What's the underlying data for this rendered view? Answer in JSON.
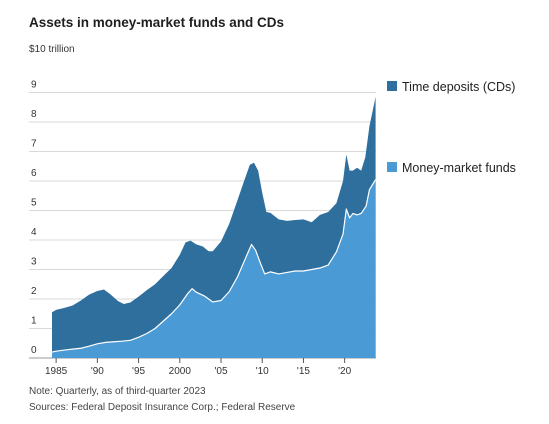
{
  "chart_data": {
    "type": "area",
    "title": "Assets in money-market funds and CDs",
    "unit_label": "$10 trillion",
    "xlabel": "",
    "ylabel": "",
    "xlim": [
      1984.5,
      2023.8
    ],
    "ylim": [
      0,
      10
    ],
    "stacked": true,
    "grid": true,
    "legend_position": "right",
    "y_ticks": [
      0,
      1,
      2,
      3,
      4,
      5,
      6,
      7,
      8,
      9
    ],
    "y_tick_labels": [
      "0",
      "1",
      "2",
      "3",
      "4",
      "5",
      "6",
      "7",
      "8",
      "9"
    ],
    "x_ticks": [
      1985,
      1990,
      1995,
      2000,
      2005,
      2010,
      2015,
      2020
    ],
    "x_tick_labels": [
      "1985",
      "'90",
      "'95",
      "2000",
      "'05",
      "'10",
      "'15",
      "'20"
    ],
    "series": [
      {
        "name": "Time deposits (CDs)",
        "color": "#2f6f9e",
        "stack_order": 2,
        "total_points": [
          [
            1984.5,
            1.55
          ],
          [
            1985,
            1.63
          ],
          [
            1986,
            1.7
          ],
          [
            1987,
            1.78
          ],
          [
            1988,
            1.95
          ],
          [
            1989,
            2.15
          ],
          [
            1990,
            2.27
          ],
          [
            1990.8,
            2.32
          ],
          [
            1991.5,
            2.18
          ],
          [
            1992.5,
            1.93
          ],
          [
            1993.2,
            1.83
          ],
          [
            1994,
            1.88
          ],
          [
            1995,
            2.08
          ],
          [
            1996,
            2.3
          ],
          [
            1997,
            2.5
          ],
          [
            1998,
            2.78
          ],
          [
            1999,
            3.05
          ],
          [
            2000,
            3.5
          ],
          [
            2000.7,
            3.92
          ],
          [
            2001.3,
            3.98
          ],
          [
            2002,
            3.85
          ],
          [
            2002.8,
            3.78
          ],
          [
            2003.5,
            3.62
          ],
          [
            2004,
            3.62
          ],
          [
            2005,
            3.95
          ],
          [
            2006,
            4.55
          ],
          [
            2007,
            5.35
          ],
          [
            2007.8,
            6.0
          ],
          [
            2008.5,
            6.55
          ],
          [
            2009,
            6.62
          ],
          [
            2009.5,
            6.35
          ],
          [
            2010,
            5.6
          ],
          [
            2010.5,
            4.95
          ],
          [
            2011,
            4.92
          ],
          [
            2012,
            4.7
          ],
          [
            2013,
            4.65
          ],
          [
            2014,
            4.68
          ],
          [
            2015,
            4.7
          ],
          [
            2016,
            4.6
          ],
          [
            2017,
            4.85
          ],
          [
            2018,
            4.95
          ],
          [
            2019,
            5.25
          ],
          [
            2019.8,
            6.0
          ],
          [
            2020.2,
            6.9
          ],
          [
            2020.6,
            6.35
          ],
          [
            2021,
            6.35
          ],
          [
            2021.5,
            6.45
          ],
          [
            2022,
            6.35
          ],
          [
            2022.5,
            6.8
          ],
          [
            2023,
            7.85
          ],
          [
            2023.75,
            8.85
          ]
        ]
      },
      {
        "name": "Money-market funds",
        "color": "#4a9ad6",
        "stack_order": 1,
        "points": [
          [
            1984.5,
            0.2
          ],
          [
            1985,
            0.23
          ],
          [
            1986,
            0.27
          ],
          [
            1987,
            0.3
          ],
          [
            1988,
            0.33
          ],
          [
            1989,
            0.4
          ],
          [
            1990,
            0.48
          ],
          [
            1991,
            0.53
          ],
          [
            1992,
            0.55
          ],
          [
            1993,
            0.57
          ],
          [
            1994,
            0.6
          ],
          [
            1995,
            0.7
          ],
          [
            1996,
            0.83
          ],
          [
            1997,
            1.0
          ],
          [
            1998,
            1.25
          ],
          [
            1999,
            1.5
          ],
          [
            2000,
            1.8
          ],
          [
            2001,
            2.2
          ],
          [
            2001.5,
            2.35
          ],
          [
            2002,
            2.23
          ],
          [
            2003,
            2.1
          ],
          [
            2004,
            1.9
          ],
          [
            2005,
            1.95
          ],
          [
            2006,
            2.25
          ],
          [
            2007,
            2.75
          ],
          [
            2008,
            3.4
          ],
          [
            2008.7,
            3.85
          ],
          [
            2009.2,
            3.65
          ],
          [
            2009.8,
            3.2
          ],
          [
            2010.3,
            2.85
          ],
          [
            2011,
            2.92
          ],
          [
            2012,
            2.85
          ],
          [
            2013,
            2.9
          ],
          [
            2014,
            2.95
          ],
          [
            2015,
            2.95
          ],
          [
            2016,
            3.0
          ],
          [
            2017,
            3.05
          ],
          [
            2018,
            3.15
          ],
          [
            2019,
            3.6
          ],
          [
            2019.8,
            4.2
          ],
          [
            2020.2,
            5.05
          ],
          [
            2020.6,
            4.75
          ],
          [
            2021,
            4.9
          ],
          [
            2021.5,
            4.85
          ],
          [
            2022,
            4.9
          ],
          [
            2022.6,
            5.15
          ],
          [
            2023,
            5.7
          ],
          [
            2023.75,
            6.05
          ]
        ]
      }
    ],
    "note": "Note: Quarterly, as of third-quarter 2023",
    "source": "Sources: Federal Deposit Insurance Corp.; Federal Reserve"
  }
}
